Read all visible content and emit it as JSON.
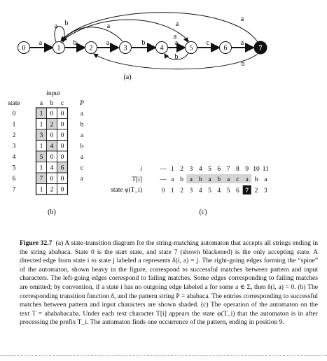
{
  "diagram": {
    "states": [
      "0",
      "1",
      "2",
      "3",
      "4",
      "5",
      "6",
      "7"
    ],
    "spine_labels": [
      "a",
      "b",
      "a",
      "b",
      "a",
      "c",
      "a"
    ],
    "failing_labels": [
      "a",
      "a",
      "b",
      "a",
      "a",
      "a",
      "b",
      "b"
    ],
    "label": "(a)"
  },
  "table": {
    "input_header": "input",
    "state_header": "state",
    "cols": [
      "a",
      "b",
      "c"
    ],
    "p_header": "P",
    "rows": [
      {
        "state": "0",
        "cells": [
          "1",
          "0",
          "0"
        ],
        "shaded": 0,
        "p": "a"
      },
      {
        "state": "1",
        "cells": [
          "1",
          "2",
          "0"
        ],
        "shaded": 1,
        "p": "b"
      },
      {
        "state": "2",
        "cells": [
          "3",
          "0",
          "0"
        ],
        "shaded": 0,
        "p": "a"
      },
      {
        "state": "3",
        "cells": [
          "1",
          "4",
          "0"
        ],
        "shaded": 1,
        "p": "b"
      },
      {
        "state": "4",
        "cells": [
          "5",
          "0",
          "0"
        ],
        "shaded": 0,
        "p": "a"
      },
      {
        "state": "5",
        "cells": [
          "1",
          "4",
          "6"
        ],
        "shaded": 2,
        "p": "c"
      },
      {
        "state": "6",
        "cells": [
          "7",
          "0",
          "0"
        ],
        "shaded": 0,
        "p": "a"
      },
      {
        "state": "7",
        "cells": [
          "1",
          "2",
          "0"
        ],
        "shaded": -1,
        "p": ""
      }
    ],
    "label": "(b)"
  },
  "operation": {
    "row_labels": [
      "i",
      "T[i]",
      "state φ(T_i)"
    ],
    "i_values": [
      "—",
      "1",
      "2",
      "3",
      "4",
      "5",
      "6",
      "7",
      "8",
      "9",
      "10",
      "11"
    ],
    "t_values": [
      "—",
      "a",
      "b",
      "a",
      "b",
      "a",
      "b",
      "a",
      "c",
      "a",
      "b",
      "a"
    ],
    "phi_values": [
      "0",
      "1",
      "2",
      "3",
      "4",
      "5",
      "4",
      "5",
      "6",
      "7",
      "2",
      "3"
    ],
    "label": "(c)"
  },
  "caption": {
    "title": "Figure 32.7",
    "text": "(a) A state-transition diagram for the string-matching automaton that accepts all strings ending in the string ababaca. State 0 is the start state, and state 7 (shown blackened) is the only accepting state. A directed edge from state i to state j labeled a represents δ(i, a) = j. The right-going edges forming the “spine” of the automaton, shown heavy in the figure, correspond to successful matches between pattern and input characters. The left-going edges correspond to failing matches. Some edges corresponding to failing matches are omitted; by convention, if a state i has no outgoing edge labeled a for some a ∈ Σ, then δ(i, a) = 0. (b) The corresponding transition function δ, and the pattern string P = ababaca. The entries corresponding to successful matches between pattern and input characters are shown shaded. (c) The operation of the automaton on the text T = abababacaba. Under each text character T[i] appears the state φ(T_i) that the automaton is in after processing the prefix T_i. The automaton finds one occurrence of the pattern, ending in position 9."
  }
}
